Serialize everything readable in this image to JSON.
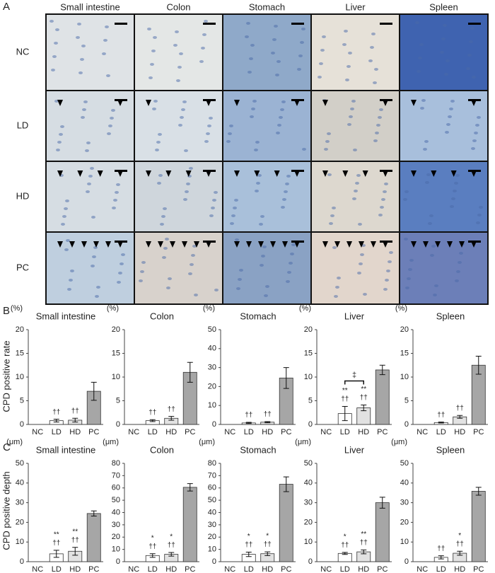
{
  "panel_a": {
    "label": "A",
    "columns": [
      "Small intestine",
      "Colon",
      "Stomach",
      "Liver",
      "Spleen"
    ],
    "rows": [
      "NC",
      "LD",
      "HD",
      "PC"
    ]
  },
  "panel_b": {
    "label": "B",
    "y_label": "CPD positive rate"
  },
  "panel_c": {
    "label": "C",
    "y_label": "CPD positive depth"
  },
  "chart_data": [
    {
      "type": "bar",
      "title": "Small intestine",
      "unit": "(%)",
      "categories": [
        "NC",
        "LD",
        "HD",
        "PC"
      ],
      "values": [
        0,
        0.8,
        0.9,
        7
      ],
      "errors": [
        0,
        0.3,
        0.4,
        1.9
      ],
      "colors": [
        "#ffffff",
        "#ffffff",
        "#e2e2e2",
        "#a6a6a6"
      ],
      "ylim": [
        0,
        20
      ],
      "yticks": [
        0,
        5,
        10,
        15,
        20
      ],
      "annotations": [
        [],
        [
          "††"
        ],
        [
          "††"
        ],
        []
      ]
    },
    {
      "type": "bar",
      "title": "Colon",
      "unit": "(%)",
      "categories": [
        "NC",
        "LD",
        "HD",
        "PC"
      ],
      "values": [
        0,
        0.8,
        1.3,
        11
      ],
      "errors": [
        0,
        0.2,
        0.4,
        2.1
      ],
      "colors": [
        "#ffffff",
        "#ffffff",
        "#e2e2e2",
        "#a6a6a6"
      ],
      "ylim": [
        0,
        20
      ],
      "yticks": [
        0,
        5,
        10,
        15,
        20
      ],
      "annotations": [
        [],
        [
          "††"
        ],
        [
          "††"
        ],
        []
      ]
    },
    {
      "type": "bar",
      "title": "Stomach",
      "unit": "(%)",
      "categories": [
        "NC",
        "LD",
        "HD",
        "PC"
      ],
      "values": [
        0,
        0.8,
        1.2,
        24.5
      ],
      "errors": [
        0,
        0.3,
        0.3,
        5.5
      ],
      "colors": [
        "#ffffff",
        "#ffffff",
        "#e2e2e2",
        "#a6a6a6"
      ],
      "ylim": [
        0,
        50
      ],
      "yticks": [
        0,
        10,
        20,
        30,
        40,
        50
      ],
      "annotations": [
        [],
        [
          "††"
        ],
        [
          "††"
        ],
        []
      ]
    },
    {
      "type": "bar",
      "title": "Liver",
      "unit": "(%)",
      "categories": [
        "NC",
        "LD",
        "HD",
        "PC"
      ],
      "values": [
        0,
        2.3,
        3.5,
        11.5
      ],
      "errors": [
        0,
        1.5,
        0.6,
        1
      ],
      "colors": [
        "#ffffff",
        "#ffffff",
        "#e2e2e2",
        "#a6a6a6"
      ],
      "ylim": [
        0,
        20
      ],
      "yticks": [
        0,
        5,
        10,
        15,
        20
      ],
      "annotations": [
        [],
        [
          "**",
          "††"
        ],
        [
          "**",
          "††"
        ],
        []
      ],
      "bracket": {
        "label": "‡",
        "between": [
          "LD",
          "HD"
        ]
      }
    },
    {
      "type": "bar",
      "title": "Spleen",
      "unit": "(%)",
      "categories": [
        "NC",
        "LD",
        "HD",
        "PC"
      ],
      "values": [
        0,
        0.4,
        1.6,
        12.5
      ],
      "errors": [
        0,
        0.1,
        0.3,
        1.9
      ],
      "colors": [
        "#ffffff",
        "#ffffff",
        "#e2e2e2",
        "#a6a6a6"
      ],
      "ylim": [
        0,
        20
      ],
      "yticks": [
        0,
        5,
        10,
        15,
        20
      ],
      "annotations": [
        [],
        [
          "††"
        ],
        [
          "††"
        ],
        []
      ]
    },
    {
      "type": "bar",
      "title": "Small intestine",
      "unit": "(μm)",
      "categories": [
        "NC",
        "LD",
        "HD",
        "PC"
      ],
      "values": [
        0,
        4,
        5.3,
        24.5
      ],
      "errors": [
        0,
        1.8,
        2,
        1.3
      ],
      "colors": [
        "#ffffff",
        "#ffffff",
        "#e2e2e2",
        "#a6a6a6"
      ],
      "ylim": [
        0,
        50
      ],
      "yticks": [
        0,
        10,
        20,
        30,
        40,
        50
      ],
      "annotations": [
        [],
        [
          "**",
          "††"
        ],
        [
          "**",
          "††"
        ],
        []
      ]
    },
    {
      "type": "bar",
      "title": "Colon",
      "unit": "(μm)",
      "categories": [
        "NC",
        "LD",
        "HD",
        "PC"
      ],
      "values": [
        0,
        5,
        6,
        60.5
      ],
      "errors": [
        0,
        1.5,
        1.5,
        3
      ],
      "colors": [
        "#ffffff",
        "#ffffff",
        "#e2e2e2",
        "#a6a6a6"
      ],
      "ylim": [
        0,
        80
      ],
      "yticks": [
        0,
        10,
        20,
        30,
        40,
        50,
        60,
        70,
        80
      ],
      "annotations": [
        [],
        [
          "*",
          "††"
        ],
        [
          "*",
          "††"
        ],
        []
      ]
    },
    {
      "type": "bar",
      "title": "Stomach",
      "unit": "(μm)",
      "categories": [
        "NC",
        "LD",
        "HD",
        "PC"
      ],
      "values": [
        0,
        6,
        6.5,
        63
      ],
      "errors": [
        0,
        1.8,
        1.5,
        6
      ],
      "colors": [
        "#ffffff",
        "#ffffff",
        "#e2e2e2",
        "#a6a6a6"
      ],
      "ylim": [
        0,
        80
      ],
      "yticks": [
        0,
        10,
        20,
        30,
        40,
        50,
        60,
        70,
        80
      ],
      "annotations": [
        [],
        [
          "*",
          "††"
        ],
        [
          "*",
          "††"
        ],
        []
      ]
    },
    {
      "type": "bar",
      "title": "Liver",
      "unit": "(μm)",
      "categories": [
        "NC",
        "LD",
        "HD",
        "PC"
      ],
      "values": [
        0,
        4.2,
        5,
        30
      ],
      "errors": [
        0,
        0.5,
        1,
        2.8
      ],
      "colors": [
        "#ffffff",
        "#ffffff",
        "#e2e2e2",
        "#a6a6a6"
      ],
      "ylim": [
        0,
        50
      ],
      "yticks": [
        0,
        10,
        20,
        30,
        40,
        50
      ],
      "annotations": [
        [],
        [
          "*",
          "††"
        ],
        [
          "**",
          "††"
        ],
        []
      ]
    },
    {
      "type": "bar",
      "title": "Spleen",
      "unit": "(μm)",
      "categories": [
        "NC",
        "LD",
        "HD",
        "PC"
      ],
      "values": [
        0,
        2.2,
        4.3,
        35.8
      ],
      "errors": [
        0,
        0.8,
        1,
        2
      ],
      "colors": [
        "#ffffff",
        "#ffffff",
        "#e2e2e2",
        "#a6a6a6"
      ],
      "ylim": [
        0,
        50
      ],
      "yticks": [
        0,
        10,
        20,
        30,
        40,
        50
      ],
      "annotations": [
        [],
        [
          "††"
        ],
        [
          "*",
          "††"
        ],
        []
      ]
    }
  ]
}
